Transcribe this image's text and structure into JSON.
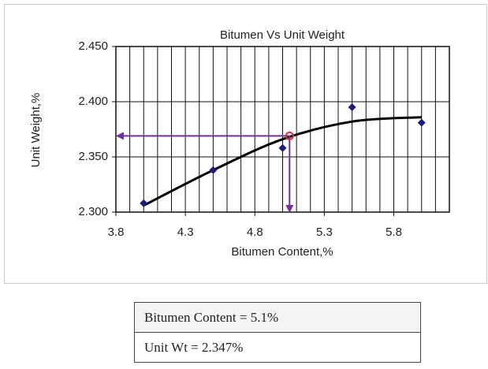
{
  "chart_data": {
    "type": "scatter",
    "title": "Bitumen Vs Unit Weight",
    "x_label": "Bitumen Content,%",
    "y_label": "Unit Weight,%",
    "xlim": [
      3.8,
      6.2
    ],
    "xticks": [
      3.8,
      4.3,
      4.8,
      5.3,
      5.8
    ],
    "xgrid": [
      3.8,
      3.9,
      4.0,
      4.1,
      4.2,
      4.3,
      4.4,
      4.5,
      4.6,
      4.7,
      4.8,
      4.9,
      5.0,
      5.1,
      5.2,
      5.3,
      5.4,
      5.5,
      5.6,
      5.7,
      5.8,
      5.9,
      6.0,
      6.1,
      6.2
    ],
    "ylim": [
      2.3,
      2.45
    ],
    "yticks": [
      {
        "value": 2.3,
        "label": "2.300"
      },
      {
        "value": 2.35,
        "label": "2.350"
      },
      {
        "value": 2.4,
        "label": "2.400"
      },
      {
        "value": 2.45,
        "label": "2.450"
      }
    ],
    "grid": true,
    "series": [
      {
        "x": [
          4.0,
          4.5,
          5.0,
          5.5,
          6.0
        ],
        "values": [
          2.308,
          2.338,
          2.358,
          2.395,
          2.381
        ],
        "color": "#1a1a80"
      }
    ],
    "trendline": {
      "x": [
        4.0,
        4.5,
        5.0,
        5.5,
        6.0
      ],
      "values": [
        2.306,
        2.338,
        2.366,
        2.382,
        2.386
      ],
      "color": "#000000"
    },
    "optimum": {
      "x": 5.05,
      "y": 2.369,
      "color": "#e03030",
      "arrow_color": "#7030a0"
    }
  },
  "table": {
    "rows": [
      "Bitumen Content = 5.1%",
      "Unit Wt = 2.347%"
    ]
  }
}
